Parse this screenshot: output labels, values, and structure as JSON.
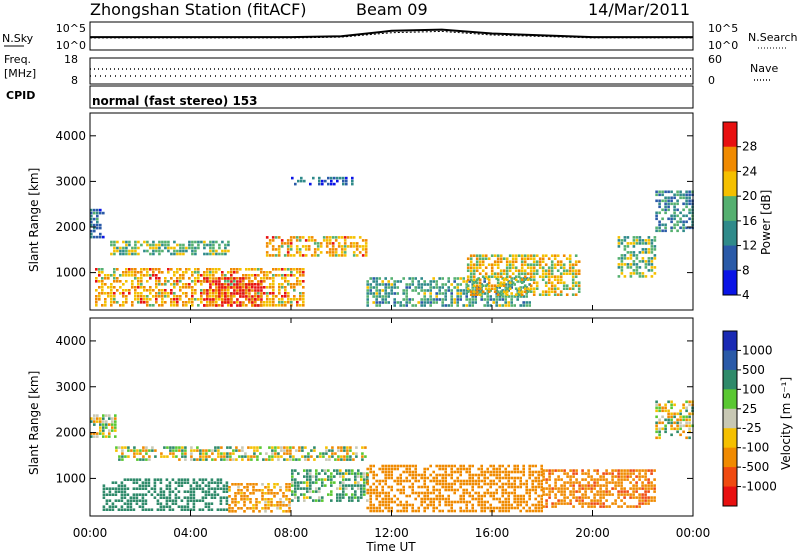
{
  "header": {
    "station": "Zhongshan Station (fitACF)",
    "beam": "Beam 09",
    "date": "14/Mar/2011"
  },
  "noise_panel": {
    "left_label": "N.Sky",
    "right_label": "N.Search",
    "left_ticks": [
      "10^5",
      "10^0"
    ],
    "right_ticks": [
      "10^5",
      "10^0"
    ]
  },
  "freq_panel": {
    "left_label": "Freq.",
    "left_unit": "[MHz]",
    "right_label": "Nave",
    "left_ticks": [
      "18",
      "8"
    ],
    "right_ticks": [
      "60",
      "0"
    ]
  },
  "cpid_panel": {
    "label": "CPID",
    "text": "normal (fast stereo) 153"
  },
  "power_panel": {
    "ylabel": "Slant Range [km]",
    "yticks": [
      "4000",
      "3000",
      "2000",
      "1000"
    ],
    "colorbar_label": "Power [dB]",
    "colorbar_ticks": [
      "28",
      "24",
      "20",
      "16",
      "12",
      "8",
      "4"
    ],
    "colorbar_colors": [
      "#0a14e6",
      "#2a5aa8",
      "#2f8a8a",
      "#55b070",
      "#f5c000",
      "#f08a00",
      "#e81010"
    ]
  },
  "velocity_panel": {
    "ylabel": "Slant Range [km]",
    "yticks": [
      "4000",
      "3000",
      "2000",
      "1000"
    ],
    "colorbar_label": "Velocity [m s⁻¹]",
    "colorbar_ticks": [
      "1000",
      "500",
      "100",
      "25",
      "-25",
      "-100",
      "-500",
      "-1000"
    ],
    "colorbar_colors": [
      "#e81010",
      "#f04a10",
      "#f08a00",
      "#f5c000",
      "#c8c8b4",
      "#5ac832",
      "#2f8a6a",
      "#2a5aa8",
      "#1a2ab4"
    ]
  },
  "xaxis": {
    "ticks": [
      "00:00",
      "04:00",
      "08:00",
      "12:00",
      "16:00",
      "20:00",
      "00:00"
    ],
    "label": "Time UT"
  },
  "chart_data": [
    {
      "type": "line",
      "title": "Zhongshan Station (fitACF)",
      "xlabel": "",
      "ylabel": "N.Sky",
      "y_scale": "log",
      "ylim": [
        1,
        100000
      ],
      "x": [
        "00:00",
        "04:00",
        "08:00",
        "10:00",
        "12:00",
        "14:00",
        "16:00",
        "20:00",
        "24:00"
      ],
      "series": [
        {
          "values": [
            300,
            300,
            300,
            450,
            8000,
            15000,
            2000,
            300,
            300
          ]
        },
        {
          "values": [
            200,
            200,
            200,
            300,
            3000,
            6000,
            900,
            200,
            200
          ]
        }
      ]
    },
    {
      "type": "scatter",
      "ylabel": "Freq. [MHz]",
      "ylim": [
        8,
        18
      ],
      "x": [
        "00:00",
        "24:00"
      ],
      "series": [
        {
          "values": [
            12,
            12
          ]
        },
        {
          "values": [
            11,
            11
          ]
        }
      ]
    },
    {
      "type": "heatmap",
      "title": "Power [dB]",
      "xlabel": "Time UT",
      "ylabel": "Slant Range [km]",
      "xlim": [
        "00:00",
        "24:00"
      ],
      "ylim": [
        180,
        4500
      ],
      "color_scale": [
        4,
        8,
        12,
        16,
        20,
        24,
        28
      ],
      "regions": [
        {
          "t": [
            0.0,
            0.5
          ],
          "r": [
            1800,
            2400
          ],
          "power": 10
        },
        {
          "t": [
            0.8,
            5.5
          ],
          "r": [
            1400,
            1700
          ],
          "power": 16
        },
        {
          "t": [
            0.2,
            8.5
          ],
          "r": [
            250,
            1100
          ],
          "power": 22
        },
        {
          "t": [
            4.5,
            6.8
          ],
          "r": [
            250,
            900
          ],
          "power": 28
        },
        {
          "t": [
            7.0,
            11.0
          ],
          "r": [
            1350,
            1800
          ],
          "power": 22
        },
        {
          "t": [
            8.0,
            10.5
          ],
          "r": [
            2950,
            3100
          ],
          "power": 8
        },
        {
          "t": [
            11.0,
            17.5
          ],
          "r": [
            300,
            900
          ],
          "power": 14
        },
        {
          "t": [
            15.0,
            19.5
          ],
          "r": [
            500,
            1400
          ],
          "power": 20
        },
        {
          "t": [
            21.0,
            22.5
          ],
          "r": [
            900,
            1800
          ],
          "power": 16
        },
        {
          "t": [
            22.5,
            24.0
          ],
          "r": [
            1900,
            2800
          ],
          "power": 12
        }
      ]
    },
    {
      "type": "heatmap",
      "title": "Velocity [m s⁻¹]",
      "xlabel": "Time UT",
      "ylabel": "Slant Range [km]",
      "xlim": [
        "00:00",
        "24:00"
      ],
      "ylim": [
        180,
        4500
      ],
      "color_scale": [
        -1000,
        -500,
        -100,
        -25,
        25,
        100,
        500,
        1000
      ],
      "regions": [
        {
          "t": [
            0.0,
            1.0
          ],
          "r": [
            1900,
            2400
          ],
          "velocity": 0
        },
        {
          "t": [
            1.0,
            11.0
          ],
          "r": [
            1400,
            1700
          ],
          "velocity": 0
        },
        {
          "t": [
            0.5,
            5.5
          ],
          "r": [
            300,
            1000
          ],
          "velocity": 300
        },
        {
          "t": [
            5.5,
            8.0
          ],
          "r": [
            300,
            900
          ],
          "velocity": -200
        },
        {
          "t": [
            8.0,
            11.0
          ],
          "r": [
            500,
            1200
          ],
          "velocity": 150
        },
        {
          "t": [
            11.0,
            18.0
          ],
          "r": [
            300,
            1300
          ],
          "velocity": -300
        },
        {
          "t": [
            18.0,
            22.5
          ],
          "r": [
            400,
            1200
          ],
          "velocity": -400
        },
        {
          "t": [
            22.5,
            24.0
          ],
          "r": [
            1900,
            2700
          ],
          "velocity": 0
        }
      ]
    }
  ]
}
